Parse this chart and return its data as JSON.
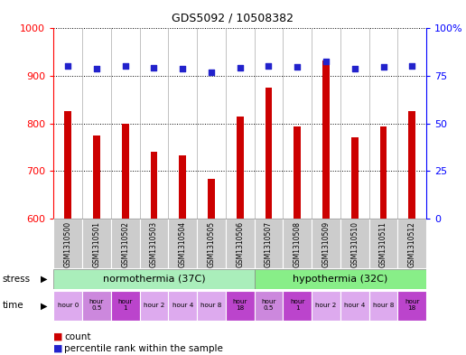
{
  "title": "GDS5092 / 10508382",
  "samples": [
    "GSM1310500",
    "GSM1310501",
    "GSM1310502",
    "GSM1310503",
    "GSM1310504",
    "GSM1310505",
    "GSM1310506",
    "GSM1310507",
    "GSM1310508",
    "GSM1310509",
    "GSM1310510",
    "GSM1310511",
    "GSM1310512"
  ],
  "counts": [
    825,
    775,
    800,
    740,
    733,
    683,
    815,
    875,
    793,
    933,
    770,
    793,
    825
  ],
  "percentiles": [
    920,
    915,
    920,
    917,
    916,
    908,
    918,
    920,
    919,
    930,
    916,
    919,
    920
  ],
  "ylim_left": [
    600,
    1000
  ],
  "ylim_right": [
    0,
    100
  ],
  "yticks_left": [
    600,
    700,
    800,
    900,
    1000
  ],
  "yticks_right": [
    0,
    25,
    50,
    75,
    100
  ],
  "bar_color": "#cc0000",
  "dot_color": "#2222cc",
  "baseline": 600,
  "stress_labels": [
    "normothermia (37C)",
    "hypothermia (32C)"
  ],
  "stress_color_norm": "#aaeebb",
  "stress_color_hypo": "#88ee88",
  "time_labels": [
    "hour 0",
    "hour\n0.5",
    "hour\n1",
    "hour 2",
    "hour 4",
    "hour 8",
    "hour\n18",
    "hour\n0.5",
    "hour\n1",
    "hour 2",
    "hour 4",
    "hour 8",
    "hour\n18"
  ],
  "time_colors_pattern": [
    0,
    1,
    2,
    0,
    0,
    0,
    2,
    1,
    2,
    0,
    0,
    0,
    2
  ],
  "time_color_map": {
    "0": "#ddaaee",
    "1": "#cc88dd",
    "2": "#bb44cc"
  },
  "bg_color": "#ffffff",
  "sample_bg_color": "#cccccc",
  "legend_count_color": "#cc0000",
  "legend_dot_color": "#2222cc"
}
